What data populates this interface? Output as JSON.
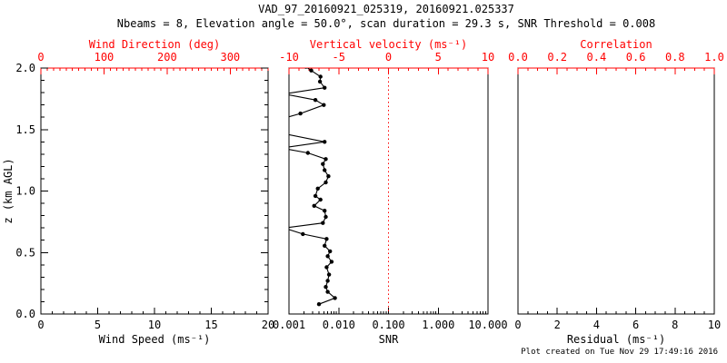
{
  "header": {
    "title": "VAD_97_20160921_025319, 20160921.025337",
    "subtitle": "Nbeams = 8, Elevation angle = 50.0°, scan duration = 29.3 s, SNR Threshold = 0.008"
  },
  "footer": {
    "created": "Plot created on Tue Nov 29 17:49:16 2016"
  },
  "colors": {
    "axis": "#000000",
    "secondary_axis": "#ff0000",
    "data": "#000000",
    "background": "#ffffff",
    "threshold_line": "#ff0000"
  },
  "chart_data": {
    "type": "scatter",
    "legend": "none",
    "grid": "off",
    "shared_y_axis": {
      "label": "z (km AGL)",
      "min": 0,
      "max": 2,
      "major": [
        0,
        0.5,
        1.0,
        1.5,
        2.0
      ],
      "labels": [
        "0.0",
        "0.5",
        "1.0",
        "1.5",
        "2.0"
      ],
      "minor_step": 0.1
    },
    "panels": [
      {
        "name": "wind-speed-panel",
        "y_ticks": true,
        "bottom_axis": {
          "label": "Wind Speed (ms⁻¹)",
          "min": 0,
          "max": 20,
          "major": [
            0,
            5,
            10,
            15,
            20
          ],
          "labels": [
            "0",
            "5",
            "10",
            "15",
            "20"
          ],
          "minor_step": 1,
          "color": "#000000"
        },
        "top_axis": {
          "label": "Wind Direction (deg)",
          "min": 0,
          "max": 360,
          "major": [
            0,
            100,
            200,
            300
          ],
          "labels": [
            "0",
            "100",
            "200",
            "300"
          ],
          "minor_step": 10,
          "color": "#ff0000"
        },
        "series": []
      },
      {
        "name": "snr-panel",
        "y_ticks": false,
        "bottom_axis": {
          "label": "SNR",
          "min": 0.001,
          "max": 10,
          "log": true,
          "major": [
            0.001,
            0.01,
            0.1,
            1,
            10
          ],
          "labels": [
            "0.001",
            "0.010",
            "0.100",
            "1.000",
            "10.000"
          ],
          "color": "#000000"
        },
        "top_axis": {
          "label": "Vertical velocity (ms⁻¹)",
          "min": -10,
          "max": 10,
          "major": [
            -10,
            -5,
            0,
            5,
            10
          ],
          "labels": [
            "-10",
            "-5",
            "0",
            "5",
            "10"
          ],
          "minor_step": 1,
          "color": "#ff0000"
        },
        "v_line": {
          "axis": "top",
          "value": 0,
          "color": "#ff0000",
          "style": "dotted"
        },
        "series": [
          {
            "name": "snr-profile",
            "color": "#000000",
            "marker": "filled-circle",
            "x_key": "SNR",
            "y_key": "z (km AGL)",
            "points": [
              [
                0.0022,
                2.01
              ],
              [
                0.0028,
                1.98
              ],
              [
                0.0043,
                1.93
              ],
              [
                0.0042,
                1.89
              ],
              [
                0.0052,
                1.84
              ],
              [
                0.0008,
                1.79
              ],
              [
                0.0034,
                1.74
              ],
              [
                0.005,
                1.7
              ],
              [
                0.0017,
                1.63
              ],
              [
                0.0005,
                1.57
              ],
              [
                0.0005,
                1.52
              ],
              [
                0.0007,
                1.47
              ],
              [
                0.0052,
                1.4
              ],
              [
                0.0007,
                1.35
              ],
              [
                0.0024,
                1.31
              ],
              [
                0.0055,
                1.26
              ],
              [
                0.0048,
                1.22
              ],
              [
                0.0052,
                1.17
              ],
              [
                0.0062,
                1.12
              ],
              [
                0.0055,
                1.07
              ],
              [
                0.0038,
                1.02
              ],
              [
                0.0034,
                0.96
              ],
              [
                0.0043,
                0.93
              ],
              [
                0.0032,
                0.88
              ],
              [
                0.0052,
                0.84
              ],
              [
                0.0055,
                0.79
              ],
              [
                0.0048,
                0.74
              ],
              [
                0.0008,
                0.7
              ],
              [
                0.0019,
                0.65
              ],
              [
                0.0057,
                0.61
              ],
              [
                0.0052,
                0.555
              ],
              [
                0.0067,
                0.51
              ],
              [
                0.006,
                0.47
              ],
              [
                0.0072,
                0.425
              ],
              [
                0.0057,
                0.38
              ],
              [
                0.0064,
                0.32
              ],
              [
                0.006,
                0.27
              ],
              [
                0.0055,
                0.22
              ],
              [
                0.006,
                0.18
              ],
              [
                0.0084,
                0.13
              ],
              [
                0.004,
                0.08
              ]
            ]
          }
        ]
      },
      {
        "name": "residual-panel",
        "y_ticks": false,
        "bottom_axis": {
          "label": "Residual (ms⁻¹)",
          "min": 0,
          "max": 10,
          "major": [
            0,
            2,
            4,
            6,
            8,
            10
          ],
          "labels": [
            "0",
            "2",
            "4",
            "6",
            "8",
            "10"
          ],
          "minor_step": 0.5,
          "color": "#000000"
        },
        "top_axis": {
          "label": "Correlation",
          "min": 0,
          "max": 1,
          "major": [
            0,
            0.2,
            0.4,
            0.6,
            0.8,
            1.0
          ],
          "labels": [
            "0.0",
            "0.2",
            "0.4",
            "0.6",
            "0.8",
            "1.0"
          ],
          "minor_step": 0.05,
          "color": "#ff0000"
        },
        "series": []
      }
    ]
  }
}
